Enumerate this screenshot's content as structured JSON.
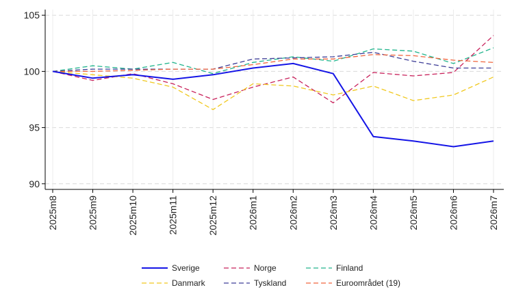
{
  "chart_data": {
    "type": "line",
    "categories": [
      "2025m8",
      "2025m9",
      "2025m10",
      "2025m11",
      "2025m12",
      "2026m1",
      "2026m2",
      "2026m3",
      "2026m4",
      "2026m5",
      "2026m6",
      "2026m7"
    ],
    "ylim": [
      89.5,
      105.5
    ],
    "yticks": [
      90,
      95,
      100,
      105
    ],
    "grid": true,
    "legend_position": "bottom",
    "series": [
      {
        "name": "Sverige",
        "color": "#1414e6",
        "dash": "solid",
        "values": [
          100.0,
          99.4,
          99.7,
          99.3,
          99.7,
          100.3,
          100.7,
          99.8,
          94.2,
          93.8,
          93.3,
          93.8
        ]
      },
      {
        "name": "Norge",
        "color": "#c8205a",
        "dash": "dashed",
        "values": [
          100.0,
          99.2,
          99.8,
          98.9,
          97.5,
          98.6,
          99.5,
          97.2,
          99.9,
          99.6,
          99.9,
          103.2
        ]
      },
      {
        "name": "Finland",
        "color": "#20b48c",
        "dash": "dashed",
        "values": [
          100.0,
          100.5,
          100.2,
          100.8,
          99.8,
          100.8,
          101.3,
          100.9,
          102.0,
          101.8,
          100.7,
          102.1
        ]
      },
      {
        "name": "Danmark",
        "color": "#f0c81e",
        "dash": "dashed",
        "values": [
          100.0,
          99.7,
          99.4,
          98.6,
          96.6,
          98.9,
          98.7,
          97.9,
          98.7,
          97.4,
          97.9,
          99.5
        ]
      },
      {
        "name": "Tyskland",
        "color": "#3c3c96",
        "dash": "dashed",
        "values": [
          100.0,
          100.2,
          100.2,
          100.2,
          100.2,
          101.1,
          101.2,
          101.3,
          101.7,
          100.9,
          100.3,
          100.3
        ]
      },
      {
        "name": "Euroområdet (19)",
        "color": "#f0643c",
        "dash": "dashed",
        "values": [
          100.0,
          100.0,
          100.1,
          100.2,
          100.2,
          100.6,
          101.1,
          101.1,
          101.5,
          101.4,
          101.0,
          100.8
        ]
      }
    ]
  }
}
